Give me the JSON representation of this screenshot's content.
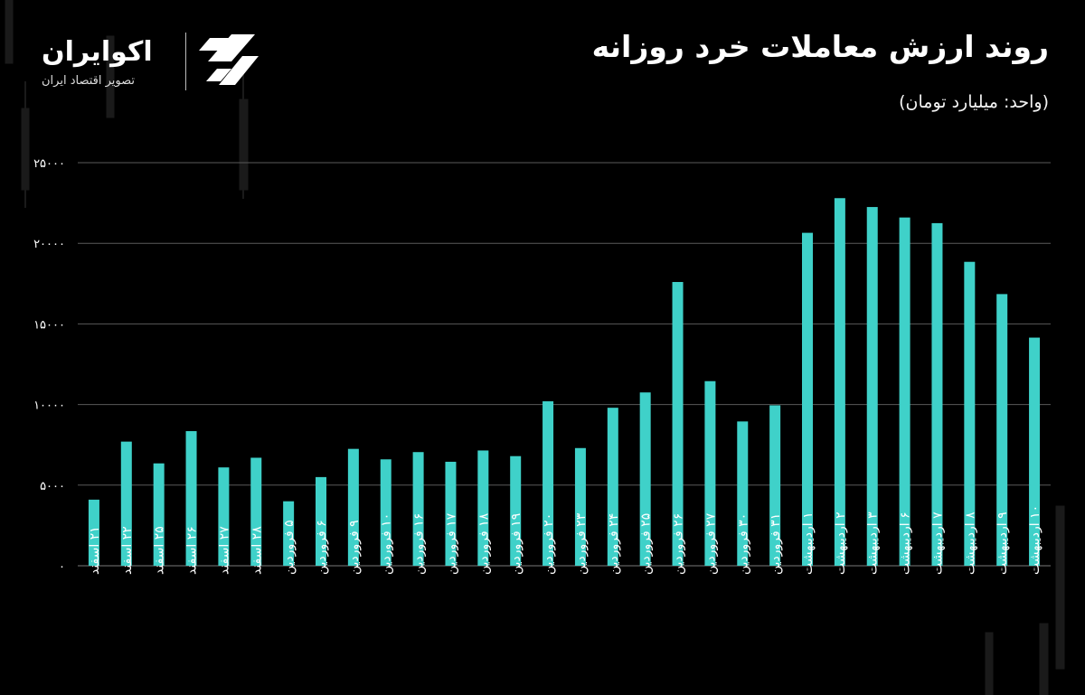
{
  "header": {
    "title": "روند ارزش معاملات خرد روزانه",
    "subtitle": "(واحد: میلیارد تومان)"
  },
  "logo": {
    "name": "اکوایران",
    "tagline": "تصویر اقتصاد ایران"
  },
  "colors": {
    "background": "#000000",
    "bar": "#3fd1c9",
    "grid": "#5a5a5a",
    "text": "#ffffff"
  },
  "chart_data": {
    "type": "bar",
    "ylim": [
      0,
      25000
    ],
    "y_ticks": [
      "۰",
      "۵۰۰۰",
      "۱۰۰۰۰",
      "۱۵۰۰۰",
      "۲۰۰۰۰",
      "۲۵۰۰۰"
    ],
    "y_tick_values": [
      0,
      5000,
      10000,
      15000,
      20000,
      25000
    ],
    "grid": true,
    "categories": [
      "۲۱ اسفند",
      "۲۲ اسفند",
      "۲۵ اسفند",
      "۲۶ اسفند",
      "۲۷ اسفند",
      "۲۸ اسفند",
      "۵ فروردین",
      "۶ فروردین",
      "۹ فروردین",
      "۱۰ فروردین",
      "۱۶ فروردین",
      "۱۷ فروردین",
      "۱۸ فروردین",
      "۱۹ فروردین",
      "۲۰ فروردین",
      "۲۳ فروردین",
      "۲۴ فروردین",
      "۲۵ فروردین",
      "۲۶ فروردین",
      "۲۷ فروردین",
      "۳۰ فروردین",
      "۳۱ فروردین",
      "۱ اردیبهشت",
      "۲ اردیبهشت",
      "۳ اردیبهشت",
      "۶ اردیبهشت",
      "۷ اردیبهشت",
      "۸ اردیبهشت",
      "۹ اردیبهشت",
      "۱۰ اردیبهشت"
    ],
    "values": [
      4100,
      7700,
      6350,
      8350,
      6100,
      6700,
      4000,
      5500,
      7250,
      6600,
      7050,
      6450,
      7150,
      6800,
      10200,
      7300,
      9800,
      10750,
      17600,
      11450,
      8950,
      9950,
      20650,
      22800,
      22250,
      21600,
      21250,
      18850,
      16850,
      14150
    ]
  }
}
